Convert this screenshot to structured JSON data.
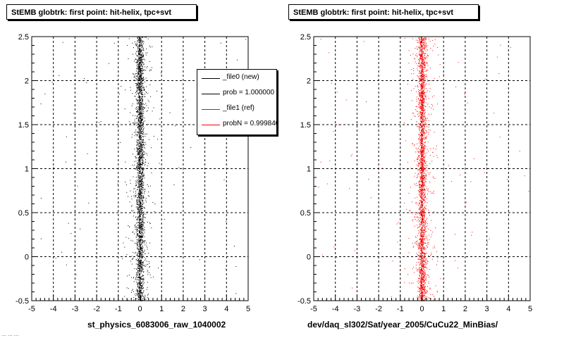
{
  "chart_data": [
    {
      "type": "scatter",
      "title": "StEMB globtrk: first point: hit-helix, tpc+svt",
      "xlabel": "st_physics_6083006_raw_1040002",
      "ylabel": "",
      "xlim": [
        -5,
        5
      ],
      "ylim": [
        -0.5,
        2.5
      ],
      "x_ticks": [
        "-5",
        "-4",
        "-3",
        "-2",
        "-1",
        "0",
        "1",
        "2",
        "3",
        "4",
        "5"
      ],
      "y_ticks": [
        "-0.5",
        "0",
        "0.5",
        "1",
        "1.5",
        "2",
        "2.5"
      ],
      "grid": true,
      "marker_color": "#000000",
      "distribution": {
        "x_center": 0.0,
        "x_core_width": 0.2,
        "y_range": [
          -0.5,
          2.5
        ]
      },
      "legend": {
        "placement": "top-right",
        "entries": [
          {
            "label": "_file0 (new)",
            "color": "#000000"
          },
          {
            "label": "prob = 1.000000",
            "color": "#000000"
          },
          {
            "label": "_file1 (ref)",
            "color": "#ff0000"
          },
          {
            "label": "probN = 0.999840",
            "color": "#ff0000"
          }
        ]
      }
    },
    {
      "type": "scatter",
      "title": "StEMB globtrk: first point: hit-helix, tpc+svt",
      "xlabel": "dev/daq_sl302/Sat/year_2005/CuCu22_MinBias/",
      "ylabel": "",
      "xlim": [
        -5,
        5
      ],
      "ylim": [
        -0.5,
        2.5
      ],
      "x_ticks": [
        "-5",
        "-4",
        "-3",
        "-2",
        "-1",
        "0",
        "1",
        "2",
        "3",
        "4",
        "5"
      ],
      "y_ticks": [
        "-0.5",
        "0",
        "0.5",
        "1",
        "1.5",
        "2",
        "2.5"
      ],
      "grid": true,
      "marker_color": "#ff0000",
      "distribution": {
        "x_center": 0.0,
        "x_core_width": 0.2,
        "y_range": [
          -0.5,
          2.5
        ]
      }
    }
  ],
  "footer": "... ... ..."
}
